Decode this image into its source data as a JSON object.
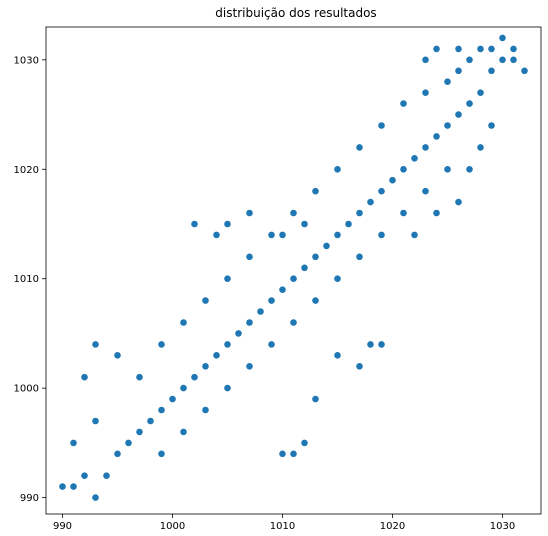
{
  "chart_data": {
    "type": "scatter",
    "title": "distribuição dos resultados",
    "xlabel": "",
    "ylabel": "",
    "xlim": [
      988.5,
      1033.5
    ],
    "ylim": [
      988.5,
      1033
    ],
    "xticks": [
      990,
      1000,
      1010,
      1020,
      1030
    ],
    "yticks": [
      990,
      1000,
      1010,
      1020,
      1030
    ],
    "grid": false,
    "legend": "none",
    "colors": {
      "marker": "#1f77b4",
      "axes": "#000000",
      "background": "#ffffff"
    },
    "series": [
      {
        "points": [
          [
            991,
            991
          ],
          [
            992,
            992
          ],
          [
            993,
            990
          ],
          [
            994,
            992
          ],
          [
            995,
            994
          ],
          [
            996,
            995
          ],
          [
            997,
            996
          ],
          [
            998,
            997
          ],
          [
            999,
            998
          ],
          [
            1000,
            999
          ],
          [
            1001,
            1000
          ],
          [
            1002,
            1001
          ],
          [
            1003,
            1002
          ],
          [
            1004,
            1003
          ],
          [
            1005,
            1004
          ],
          [
            1006,
            1005
          ],
          [
            1007,
            1006
          ],
          [
            1008,
            1007
          ],
          [
            1009,
            1008
          ],
          [
            1010,
            1009
          ],
          [
            1011,
            1010
          ],
          [
            1012,
            1011
          ],
          [
            1013,
            1012
          ],
          [
            1014,
            1013
          ],
          [
            1015,
            1014
          ],
          [
            1016,
            1015
          ],
          [
            1017,
            1016
          ],
          [
            1018,
            1017
          ],
          [
            1019,
            1018
          ],
          [
            1020,
            1019
          ],
          [
            1021,
            1020
          ],
          [
            1022,
            1021
          ],
          [
            1023,
            1022
          ],
          [
            1024,
            1023
          ],
          [
            1025,
            1024
          ],
          [
            1026,
            1025
          ],
          [
            1027,
            1026
          ],
          [
            1028,
            1027
          ],
          [
            1029,
            1029
          ],
          [
            1030,
            1030
          ],
          [
            1031,
            1031
          ],
          [
            1032,
            1029
          ],
          [
            997,
            1001
          ],
          [
            999,
            1004
          ],
          [
            1001,
            1006
          ],
          [
            1003,
            1008
          ],
          [
            1005,
            1010
          ],
          [
            1007,
            1012
          ],
          [
            1009,
            1014
          ],
          [
            1011,
            1016
          ],
          [
            1013,
            1018
          ],
          [
            1015,
            1020
          ],
          [
            1017,
            1022
          ],
          [
            1019,
            1024
          ],
          [
            1021,
            1026
          ],
          [
            1023,
            1027
          ],
          [
            999,
            994
          ],
          [
            1001,
            996
          ],
          [
            1003,
            998
          ],
          [
            1005,
            1000
          ],
          [
            1007,
            1002
          ],
          [
            1009,
            1004
          ],
          [
            1011,
            1006
          ],
          [
            1013,
            1008
          ],
          [
            1015,
            1010
          ],
          [
            1017,
            1012
          ],
          [
            1019,
            1014
          ],
          [
            1021,
            1016
          ],
          [
            1023,
            1018
          ],
          [
            1025,
            1020
          ],
          [
            1002,
            1015
          ],
          [
            1004,
            1014
          ],
          [
            1005,
            1015
          ],
          [
            1007,
            1016
          ],
          [
            1010,
            1014
          ],
          [
            1012,
            1015
          ],
          [
            1010,
            994
          ],
          [
            1012,
            995
          ],
          [
            1011,
            994
          ],
          [
            1013,
            999
          ],
          [
            1015,
            1003
          ],
          [
            1017,
            1002
          ],
          [
            1018,
            1004
          ],
          [
            1019,
            1004
          ],
          [
            993,
            1004
          ],
          [
            992,
            1001
          ],
          [
            995,
            1003
          ],
          [
            991,
            995
          ],
          [
            990,
            991
          ],
          [
            993,
            997
          ],
          [
            1022,
            1014
          ],
          [
            1024,
            1016
          ],
          [
            1026,
            1017
          ],
          [
            1027,
            1020
          ],
          [
            1028,
            1022
          ],
          [
            1029,
            1024
          ],
          [
            1025,
            1028
          ],
          [
            1026,
            1029
          ],
          [
            1027,
            1030
          ],
          [
            1028,
            1031
          ],
          [
            1029,
            1031
          ],
          [
            1030,
            1032
          ],
          [
            1031,
            1030
          ],
          [
            1024,
            1031
          ],
          [
            1023,
            1030
          ],
          [
            1026,
            1031
          ]
        ]
      }
    ]
  }
}
